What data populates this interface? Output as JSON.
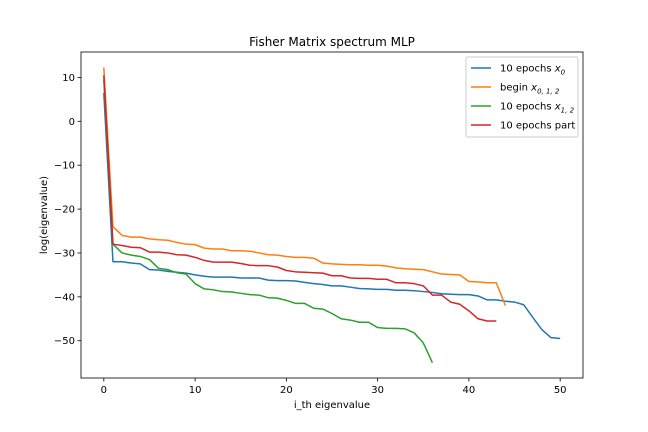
{
  "chart_data": {
    "type": "line",
    "title": "Fisher Matrix spectrum MLP",
    "xlabel": "i_th eigenvalue",
    "ylabel": "log(eigenvalue)",
    "xlim": [
      -2.5,
      52.5
    ],
    "ylim": [
      -58.5,
      15.8
    ],
    "xticks": [
      0,
      10,
      20,
      30,
      40,
      50
    ],
    "yticks": [
      10,
      0,
      -10,
      -20,
      -30,
      -40,
      -50
    ],
    "grid": false,
    "legend_position": "top-right",
    "series": [
      {
        "name_main": "10 epochs ",
        "name_math": "x",
        "name_sub": "0",
        "color": "#1f77b4",
        "x": [
          0,
          1,
          2,
          3,
          4,
          5,
          6,
          7,
          8,
          9,
          10,
          11,
          12,
          13,
          14,
          15,
          16,
          17,
          18,
          19,
          20,
          21,
          22,
          23,
          24,
          25,
          26,
          27,
          28,
          29,
          30,
          31,
          32,
          33,
          34,
          35,
          36,
          37,
          38,
          39,
          40,
          41,
          42,
          43,
          44,
          45,
          46,
          47,
          48,
          49,
          50
        ],
        "values": [
          6.5,
          -32.0,
          -32.0,
          -32.3,
          -32.5,
          -33.8,
          -33.9,
          -34.2,
          -34.4,
          -34.6,
          -35.0,
          -35.3,
          -35.5,
          -35.5,
          -35.5,
          -35.7,
          -35.7,
          -35.7,
          -36.2,
          -36.3,
          -36.3,
          -36.4,
          -36.7,
          -37.0,
          -37.2,
          -37.5,
          -37.5,
          -37.8,
          -38.1,
          -38.2,
          -38.3,
          -38.3,
          -38.5,
          -38.5,
          -38.6,
          -38.8,
          -39.0,
          -39.3,
          -39.4,
          -39.5,
          -39.5,
          -39.8,
          -40.7,
          -40.7,
          -41.0,
          -41.2,
          -41.8,
          -44.7,
          -47.5,
          -49.3,
          -49.5
        ]
      },
      {
        "name_main": "begin ",
        "name_math": "x",
        "name_sub": "0, 1, 2",
        "color": "#ff7f0e",
        "x": [
          0,
          1,
          2,
          3,
          4,
          5,
          6,
          7,
          8,
          9,
          10,
          11,
          12,
          13,
          14,
          15,
          16,
          17,
          18,
          19,
          20,
          21,
          22,
          23,
          24,
          25,
          26,
          27,
          28,
          29,
          30,
          31,
          32,
          33,
          34,
          35,
          36,
          37,
          38,
          39,
          40,
          41,
          42,
          43,
          44
        ],
        "values": [
          12.3,
          -24.0,
          -26.0,
          -26.4,
          -26.4,
          -26.8,
          -27.0,
          -27.1,
          -27.6,
          -28.0,
          -28.1,
          -28.9,
          -29.1,
          -29.1,
          -29.5,
          -29.5,
          -29.6,
          -30.0,
          -30.4,
          -30.5,
          -30.8,
          -31.0,
          -31.0,
          -31.2,
          -32.3,
          -32.5,
          -32.6,
          -32.7,
          -32.7,
          -32.8,
          -32.8,
          -33.0,
          -33.4,
          -33.6,
          -33.7,
          -33.8,
          -34.3,
          -34.8,
          -34.9,
          -35.0,
          -36.5,
          -36.6,
          -36.8,
          -36.8,
          -42.0
        ]
      },
      {
        "name_main": "10 epochs ",
        "name_math": "x",
        "name_sub": "1, 2",
        "color": "#2ca02c",
        "x": [
          0,
          1,
          2,
          3,
          4,
          5,
          6,
          7,
          8,
          9,
          10,
          11,
          12,
          13,
          14,
          15,
          16,
          17,
          18,
          19,
          20,
          21,
          22,
          23,
          24,
          25,
          26,
          27,
          28,
          29,
          30,
          31,
          32,
          33,
          34,
          35,
          36
        ],
        "values": [
          9.5,
          -28.0,
          -30.0,
          -30.5,
          -30.8,
          -31.5,
          -33.5,
          -33.8,
          -34.5,
          -34.8,
          -37.0,
          -38.2,
          -38.4,
          -38.8,
          -38.9,
          -39.2,
          -39.5,
          -39.6,
          -40.2,
          -40.3,
          -40.8,
          -41.5,
          -41.5,
          -42.6,
          -42.8,
          -43.8,
          -45.0,
          -45.3,
          -45.8,
          -45.8,
          -47.0,
          -47.2,
          -47.2,
          -47.3,
          -48.2,
          -50.5,
          -55.0
        ]
      },
      {
        "name_main": "10 epochs part",
        "name_math": "",
        "name_sub": "",
        "color": "#d62728",
        "x": [
          0,
          1,
          2,
          3,
          4,
          5,
          6,
          7,
          8,
          9,
          10,
          11,
          12,
          13,
          14,
          15,
          16,
          17,
          18,
          19,
          20,
          21,
          22,
          23,
          24,
          25,
          26,
          27,
          28,
          29,
          30,
          31,
          32,
          33,
          34,
          35,
          36,
          37,
          38,
          39,
          40,
          41,
          42,
          43
        ],
        "values": [
          10.5,
          -28.0,
          -28.3,
          -28.7,
          -28.8,
          -29.8,
          -29.8,
          -30.0,
          -30.4,
          -30.5,
          -31.0,
          -31.7,
          -32.1,
          -32.1,
          -32.1,
          -32.4,
          -32.8,
          -32.9,
          -32.9,
          -33.2,
          -34.0,
          -34.3,
          -34.4,
          -34.5,
          -34.6,
          -35.2,
          -35.2,
          -35.7,
          -35.8,
          -35.8,
          -36.0,
          -36.0,
          -36.8,
          -36.8,
          -37.0,
          -37.5,
          -39.6,
          -39.6,
          -41.2,
          -41.7,
          -43.2,
          -45.0,
          -45.5,
          -45.5
        ]
      }
    ]
  }
}
